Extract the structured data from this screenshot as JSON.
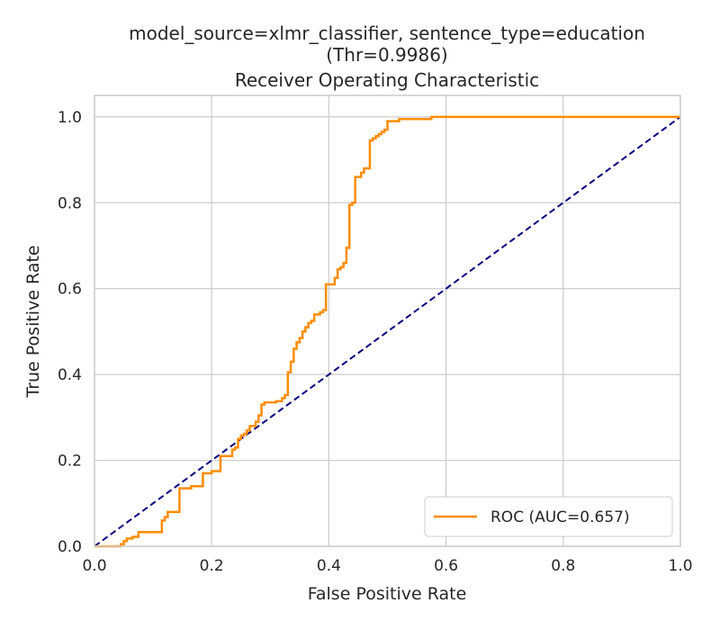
{
  "chart_data": {
    "type": "line",
    "title_lines": [
      "model_source=xlmr_classifier, sentence_type=education",
      "(Thr=0.9986)",
      "Receiver Operating Characteristic"
    ],
    "xlabel": "False Positive Rate",
    "ylabel": "True Positive Rate",
    "xlim": [
      0,
      1
    ],
    "ylim": [
      0,
      1.05
    ],
    "xticks": [
      0.0,
      0.2,
      0.4,
      0.6,
      0.8,
      1.0
    ],
    "xtick_labels": [
      "0.0",
      "0.2",
      "0.4",
      "0.6",
      "0.8",
      "1.0"
    ],
    "yticks": [
      0.0,
      0.2,
      0.4,
      0.6,
      0.8,
      1.0
    ],
    "ytick_labels": [
      "0.0",
      "0.2",
      "0.4",
      "0.6",
      "0.8",
      "1.0"
    ],
    "grid": true,
    "legend_position": "lower-right",
    "series": [
      {
        "name": "ROC (AUC=0.657)",
        "color": "#ff8c00",
        "style": "solid",
        "x": [
          0.0,
          0.045,
          0.045,
          0.05,
          0.05,
          0.055,
          0.055,
          0.065,
          0.065,
          0.075,
          0.075,
          0.115,
          0.115,
          0.12,
          0.12,
          0.125,
          0.125,
          0.145,
          0.145,
          0.165,
          0.165,
          0.185,
          0.185,
          0.2,
          0.2,
          0.215,
          0.215,
          0.235,
          0.235,
          0.24,
          0.24,
          0.245,
          0.245,
          0.25,
          0.25,
          0.255,
          0.255,
          0.26,
          0.26,
          0.265,
          0.265,
          0.275,
          0.275,
          0.28,
          0.28,
          0.285,
          0.285,
          0.29,
          0.29,
          0.31,
          0.31,
          0.32,
          0.32,
          0.325,
          0.325,
          0.33,
          0.33,
          0.335,
          0.335,
          0.34,
          0.34,
          0.345,
          0.345,
          0.35,
          0.35,
          0.355,
          0.355,
          0.36,
          0.36,
          0.365,
          0.365,
          0.37,
          0.37,
          0.375,
          0.375,
          0.385,
          0.385,
          0.39,
          0.39,
          0.395,
          0.395,
          0.41,
          0.41,
          0.415,
          0.415,
          0.42,
          0.42,
          0.425,
          0.425,
          0.43,
          0.43,
          0.435,
          0.435,
          0.44,
          0.44,
          0.445,
          0.445,
          0.455,
          0.455,
          0.46,
          0.46,
          0.47,
          0.47,
          0.475,
          0.475,
          0.48,
          0.48,
          0.485,
          0.485,
          0.49,
          0.49,
          0.495,
          0.495,
          0.5,
          0.5,
          0.52,
          0.52,
          0.54,
          0.54,
          0.575,
          0.575,
          1.0
        ],
        "y": [
          0.0,
          0.0,
          0.005,
          0.005,
          0.012,
          0.012,
          0.018,
          0.018,
          0.022,
          0.022,
          0.033,
          0.033,
          0.06,
          0.06,
          0.068,
          0.068,
          0.08,
          0.08,
          0.135,
          0.135,
          0.14,
          0.14,
          0.17,
          0.17,
          0.175,
          0.175,
          0.21,
          0.21,
          0.225,
          0.225,
          0.23,
          0.23,
          0.25,
          0.25,
          0.258,
          0.258,
          0.262,
          0.262,
          0.27,
          0.27,
          0.28,
          0.28,
          0.29,
          0.29,
          0.305,
          0.305,
          0.33,
          0.33,
          0.335,
          0.335,
          0.338,
          0.338,
          0.345,
          0.345,
          0.352,
          0.352,
          0.405,
          0.405,
          0.43,
          0.43,
          0.46,
          0.46,
          0.475,
          0.475,
          0.485,
          0.485,
          0.5,
          0.5,
          0.51,
          0.51,
          0.52,
          0.52,
          0.525,
          0.525,
          0.54,
          0.54,
          0.545,
          0.545,
          0.55,
          0.55,
          0.61,
          0.61,
          0.625,
          0.625,
          0.645,
          0.645,
          0.65,
          0.65,
          0.66,
          0.66,
          0.695,
          0.695,
          0.795,
          0.795,
          0.8,
          0.8,
          0.86,
          0.86,
          0.87,
          0.87,
          0.88,
          0.88,
          0.945,
          0.945,
          0.95,
          0.95,
          0.955,
          0.955,
          0.96,
          0.96,
          0.965,
          0.965,
          0.97,
          0.97,
          0.99,
          0.99,
          0.995,
          0.995,
          0.995,
          0.995,
          1.0,
          1.0
        ]
      },
      {
        "name": "",
        "color": "#000080",
        "style": "dashed",
        "x": [
          0.0,
          1.0
        ],
        "y": [
          0.0,
          1.0
        ]
      }
    ]
  }
}
